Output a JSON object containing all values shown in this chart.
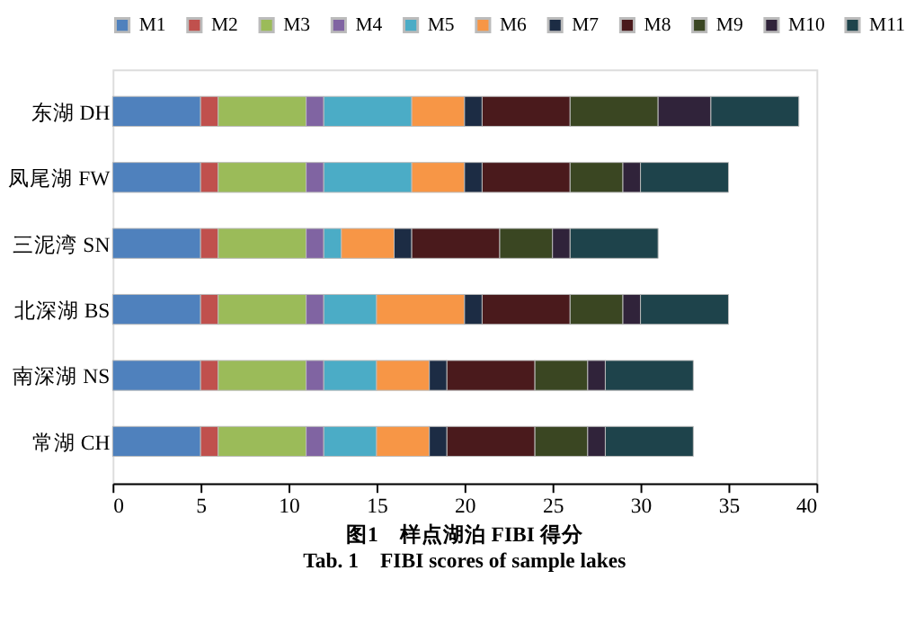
{
  "chart_data": {
    "type": "bar",
    "orientation": "horizontal",
    "stacked": true,
    "title": "图1　样点湖泊 FIBI 得分",
    "subtitle": "Tab. 1　FIBI scores of sample lakes",
    "categories": [
      "东湖 DH",
      "凤尾湖 FW",
      "三泥湾 SN",
      "北深湖 BS",
      "南深湖 NS",
      "常湖 CH"
    ],
    "series": [
      {
        "name": "M1",
        "color": "#4f81bd",
        "values": [
          5,
          5,
          5,
          5,
          5,
          5
        ]
      },
      {
        "name": "M2",
        "color": "#c0504d",
        "values": [
          1,
          1,
          1,
          1,
          1,
          1
        ]
      },
      {
        "name": "M3",
        "color": "#9bbb59",
        "values": [
          5,
          5,
          5,
          5,
          5,
          5
        ]
      },
      {
        "name": "M4",
        "color": "#8064a2",
        "values": [
          1,
          1,
          1,
          1,
          1,
          1
        ]
      },
      {
        "name": "M5",
        "color": "#4bacc6",
        "values": [
          5,
          5,
          1,
          3,
          3,
          3
        ]
      },
      {
        "name": "M6",
        "color": "#f79646",
        "values": [
          3,
          3,
          3,
          5,
          3,
          3
        ]
      },
      {
        "name": "M7",
        "color": "#1c2c44",
        "values": [
          1,
          1,
          1,
          1,
          1,
          1
        ]
      },
      {
        "name": "M8",
        "color": "#4a1a1c",
        "values": [
          5,
          5,
          5,
          5,
          5,
          5
        ]
      },
      {
        "name": "M9",
        "color": "#3a4622",
        "values": [
          5,
          3,
          3,
          3,
          3,
          3
        ]
      },
      {
        "name": "M10",
        "color": "#30233a",
        "values": [
          3,
          1,
          1,
          1,
          1,
          1
        ]
      },
      {
        "name": "M11",
        "color": "#1e434b",
        "values": [
          5,
          5,
          5,
          5,
          5,
          5
        ]
      }
    ],
    "xlim": [
      0,
      40
    ],
    "xticks": [
      0,
      5,
      10,
      15,
      20,
      25,
      30,
      35,
      40
    ],
    "grid": false,
    "legend": "top"
  }
}
